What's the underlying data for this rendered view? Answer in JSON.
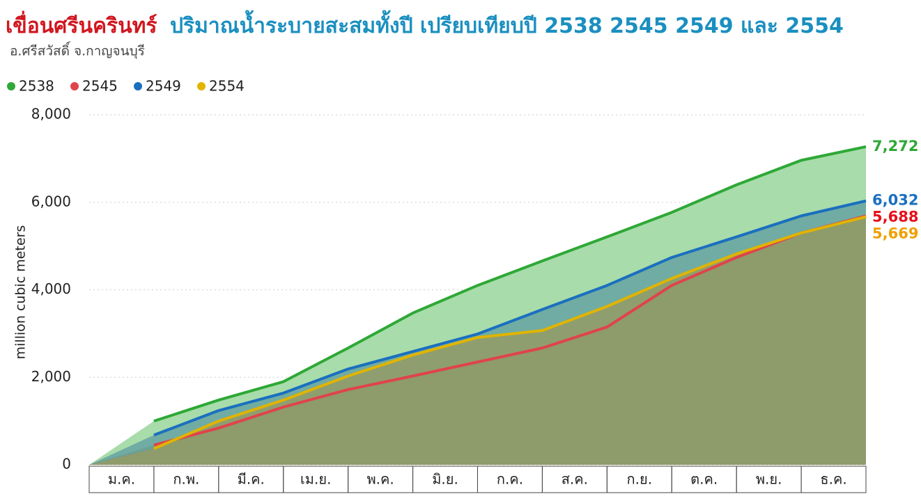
{
  "chart_data": {
    "type": "area",
    "title_main": "เขื่อนศรีนครินทร์",
    "title_rest": "ปริมาณน้ำระบายสะสมทั้งปี เปรียบเทียบปี 2538 2545 2549 และ 2554",
    "subtitle": "อ.ศรีสวัสดิ์ จ.กาญจนบุรี",
    "ylabel": "million cubic meters",
    "categories": [
      "ม.ค.",
      "ก.พ.",
      "มี.ค.",
      "เม.ย.",
      "พ.ค.",
      "มิ.ย.",
      "ก.ค.",
      "ส.ค.",
      "ก.ย.",
      "ต.ค.",
      "พ.ย.",
      "ธ.ค."
    ],
    "ylim": [
      0,
      8000
    ],
    "yticks": [
      0,
      {
        "value": 2000,
        "label": "2,000"
      },
      {
        "value": 4000,
        "label": "4,000"
      },
      {
        "value": 6000,
        "label": "6,000"
      },
      {
        "value": 8000,
        "label": "8,000"
      }
    ],
    "grid": true,
    "legend": "top-left",
    "series": [
      {
        "name": "2538",
        "color": "#2ea836",
        "fill": "#a8dcaa",
        "label_color": "#2ea836",
        "values": [
          1000,
          1480,
          1900,
          2670,
          3470,
          4100,
          4660,
          5210,
          5770,
          6400,
          6960,
          7272
        ],
        "value_labels": [
          null,
          null,
          null,
          null,
          null,
          null,
          null,
          null,
          null,
          null,
          null,
          "7,272"
        ]
      },
      {
        "name": "2545",
        "color": "#e0434a",
        "fill": "#9a9a5e",
        "label_color": "#e8101a",
        "values": [
          450,
          840,
          1320,
          1720,
          2030,
          2350,
          2670,
          3150,
          4100,
          4740,
          5300,
          5688
        ],
        "value_labels": [
          null,
          null,
          null,
          null,
          null,
          null,
          null,
          null,
          null,
          null,
          null,
          "5,688"
        ]
      },
      {
        "name": "2549",
        "color": "#1a6fbf",
        "fill": "#5d9ca0",
        "label_color": "#1a6fbf",
        "values": [
          680,
          1240,
          1640,
          2190,
          2590,
          2990,
          3550,
          4100,
          4740,
          5210,
          5690,
          6032
        ],
        "value_labels": [
          null,
          null,
          null,
          null,
          null,
          null,
          null,
          null,
          null,
          null,
          null,
          "6,032"
        ]
      },
      {
        "name": "2554",
        "color": "#e0b400",
        "fill": "#9a9a5e",
        "label_color": "#f0a000",
        "values": [
          370,
          1000,
          1480,
          2030,
          2510,
          2910,
          3070,
          3620,
          4260,
          4820,
          5300,
          5669
        ],
        "value_labels": [
          null,
          null,
          null,
          null,
          null,
          null,
          null,
          null,
          null,
          null,
          null,
          "5,669"
        ]
      }
    ]
  }
}
